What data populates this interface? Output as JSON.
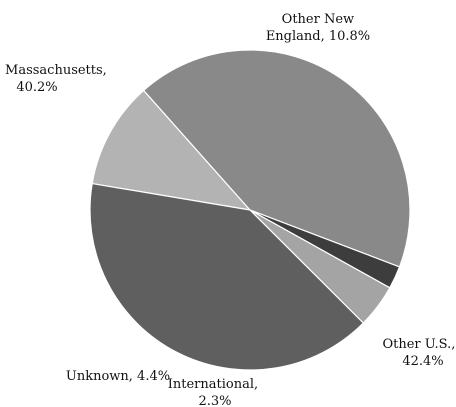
{
  "chart_data": {
    "type": "pie",
    "title": "",
    "start_angle_deg": 0,
    "direction": "clockwise",
    "slices": [
      {
        "category": "Other New England",
        "value": 10.8,
        "line1": "Other New",
        "line2": "England, 10.8%",
        "color": "#b3b3b3"
      },
      {
        "category": "Other U.S.",
        "value": 42.4,
        "line1": "Other U.S.,",
        "line2": "42.4%",
        "color": "#898989"
      },
      {
        "category": "International",
        "value": 2.3,
        "line1": "International,",
        "line2": "2.3%",
        "color": "#3d3d3d"
      },
      {
        "category": "Unknown",
        "value": 4.4,
        "line1": "Unknown, 4.4%",
        "line2": "",
        "color": "#a4a4a4"
      },
      {
        "category": "Massachusetts",
        "value": 40.2,
        "line1": "Massachusetts,",
        "line2": "40.2%",
        "color": "#5f5f5f"
      }
    ]
  }
}
